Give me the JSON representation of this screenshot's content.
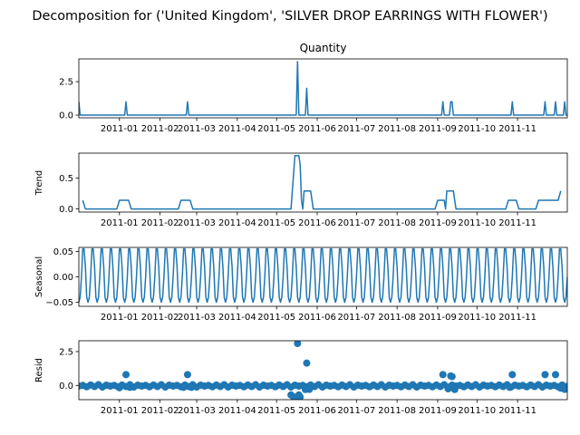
{
  "figure": {
    "suptitle": "Decomposition for ('United Kingdom', 'SILVER DROP EARRINGS WITH FLOWER')"
  },
  "colors": {
    "series": "#1f77b4",
    "axes": "#000000",
    "background": "#ffffff"
  },
  "chart_data": [
    {
      "type": "line",
      "title": "Quantity",
      "ylabel": "",
      "xlim": [
        "2010-12-01",
        "2011-12-09"
      ],
      "ylim": [
        -0.2,
        4.2
      ],
      "yticks": [
        0.0,
        2.5
      ],
      "ytick_labels": [
        "0.0",
        "2.5"
      ],
      "xtick_labels": [
        "2011-01",
        "2011-02",
        "2011-03",
        "2011-04",
        "2011-05",
        "2011-06",
        "2011-07",
        "2011-08",
        "2011-09",
        "2011-10",
        "2011-11"
      ],
      "series": [
        {
          "baseline": 0,
          "start": "2010-12-01",
          "end": "2011-12-09",
          "points": [
            [
              "2010-12-01",
              1
            ],
            [
              "2011-01-06",
              1
            ],
            [
              "2011-02-22",
              1
            ],
            [
              "2011-05-17",
              4
            ],
            [
              "2011-05-24",
              2
            ],
            [
              "2011-09-05",
              1
            ],
            [
              "2011-09-11",
              1
            ],
            [
              "2011-09-12",
              1
            ],
            [
              "2011-10-28",
              1
            ],
            [
              "2011-11-22",
              1
            ],
            [
              "2011-11-30",
              1
            ],
            [
              "2011-12-07",
              1
            ]
          ]
        }
      ],
      "grid": false,
      "legend": "none"
    },
    {
      "type": "line",
      "title": "",
      "ylabel": "Trend",
      "xlim": [
        "2010-12-01",
        "2011-12-09"
      ],
      "ylim": [
        -0.05,
        0.9
      ],
      "yticks": [
        0.0,
        0.5
      ],
      "ytick_labels": [
        "0.0",
        "0.5"
      ],
      "xtick_labels": [
        "2011-01",
        "2011-02",
        "2011-03",
        "2011-04",
        "2011-05",
        "2011-06",
        "2011-07",
        "2011-08",
        "2011-09",
        "2011-10",
        "2011-11"
      ],
      "series": [
        {
          "points": [
            [
              "2010-12-04",
              0.14
            ],
            [
              "2010-12-06",
              0.0
            ],
            [
              "2010-12-30",
              0.0
            ],
            [
              "2011-01-01",
              0.14
            ],
            [
              "2011-01-08",
              0.14
            ],
            [
              "2011-01-10",
              0.0
            ],
            [
              "2011-02-15",
              0.0
            ],
            [
              "2011-02-17",
              0.14
            ],
            [
              "2011-02-24",
              0.14
            ],
            [
              "2011-02-26",
              0.0
            ],
            [
              "2011-05-12",
              0.0
            ],
            [
              "2011-05-14",
              0.57
            ],
            [
              "2011-05-15",
              0.86
            ],
            [
              "2011-05-18",
              0.86
            ],
            [
              "2011-05-19",
              0.71
            ],
            [
              "2011-05-20",
              0.14
            ],
            [
              "2011-05-21",
              0.0
            ],
            [
              "2011-05-22",
              0.29
            ],
            [
              "2011-05-27",
              0.29
            ],
            [
              "2011-05-29",
              0.0
            ],
            [
              "2011-08-30",
              0.0
            ],
            [
              "2011-09-01",
              0.14
            ],
            [
              "2011-09-06",
              0.14
            ],
            [
              "2011-09-07",
              0.0
            ],
            [
              "2011-09-08",
              0.29
            ],
            [
              "2011-09-13",
              0.29
            ],
            [
              "2011-09-15",
              0.0
            ],
            [
              "2011-10-23",
              0.0
            ],
            [
              "2011-10-25",
              0.14
            ],
            [
              "2011-10-31",
              0.14
            ],
            [
              "2011-11-02",
              0.0
            ],
            [
              "2011-11-15",
              0.0
            ],
            [
              "2011-11-17",
              0.14
            ],
            [
              "2011-12-02",
              0.14
            ],
            [
              "2011-12-04",
              0.29
            ]
          ]
        }
      ],
      "grid": false,
      "legend": "none"
    },
    {
      "type": "line",
      "title": "",
      "ylabel": "Seasonal",
      "xlim": [
        "2010-12-01",
        "2011-12-09"
      ],
      "ylim": [
        -0.058,
        0.058
      ],
      "yticks": [
        -0.05,
        0.0,
        0.05
      ],
      "ytick_labels": [
        "−0.05",
        "0.00",
        "0.05"
      ],
      "xtick_labels": [
        "2011-01",
        "2011-02",
        "2011-03",
        "2011-04",
        "2011-05",
        "2011-06",
        "2011-07",
        "2011-08",
        "2011-09",
        "2011-10",
        "2011-11"
      ],
      "series": [
        {
          "start": "2010-12-01",
          "end": "2011-12-09",
          "period_days": 7,
          "weekly_pattern": [
            -0.05,
            -0.04,
            0.0,
            0.055,
            0.055,
            0.02,
            -0.04
          ]
        }
      ],
      "grid": false,
      "legend": "none"
    },
    {
      "type": "scatter",
      "title": "",
      "ylabel": "Resid",
      "xlim": [
        "2010-12-01",
        "2011-12-09"
      ],
      "ylim": [
        -1.05,
        3.3
      ],
      "yticks": [
        0.0,
        2.5
      ],
      "ytick_labels": [
        "0.0",
        "2.5"
      ],
      "xtick_labels": [
        "2011-01",
        "2011-02",
        "2011-03",
        "2011-04",
        "2011-05",
        "2011-06",
        "2011-07",
        "2011-08",
        "2011-09",
        "2011-10",
        "2011-11"
      ],
      "series": [
        {
          "baseline_start": "2010-12-01",
          "baseline_end": "2011-12-09",
          "baseline_step_days": 3,
          "baseline_values": [
            -0.05,
            0.0,
            -0.1,
            0.03,
            -0.08,
            0.05,
            -0.12,
            0.02
          ],
          "points": [
            [
              "2011-01-06",
              0.8
            ],
            [
              "2011-01-01",
              -0.17
            ],
            [
              "2011-01-09",
              -0.14
            ],
            [
              "2011-02-22",
              0.8
            ],
            [
              "2011-02-19",
              -0.14
            ],
            [
              "2011-02-25",
              -0.14
            ],
            [
              "2011-05-12",
              -0.7
            ],
            [
              "2011-05-14",
              -0.86
            ],
            [
              "2011-05-16",
              -0.86
            ],
            [
              "2011-05-17",
              3.1
            ],
            [
              "2011-05-18",
              -0.7
            ],
            [
              "2011-05-19",
              -0.86
            ],
            [
              "2011-05-24",
              1.65
            ],
            [
              "2011-05-23",
              -0.3
            ],
            [
              "2011-05-26",
              -0.29
            ],
            [
              "2011-09-05",
              0.8
            ],
            [
              "2011-09-11",
              0.7
            ],
            [
              "2011-09-12",
              0.65
            ],
            [
              "2011-09-09",
              -0.25
            ],
            [
              "2011-09-14",
              -0.3
            ],
            [
              "2011-10-28",
              0.8
            ],
            [
              "2011-10-26",
              -0.14
            ],
            [
              "2011-11-22",
              0.8
            ],
            [
              "2011-11-30",
              0.8
            ],
            [
              "2011-12-04",
              -0.2
            ],
            [
              "2011-12-07",
              -0.29
            ]
          ]
        }
      ],
      "grid": false,
      "legend": "none"
    }
  ]
}
